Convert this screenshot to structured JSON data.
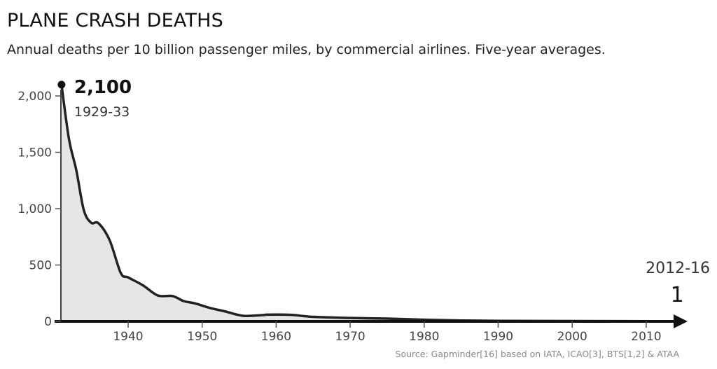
{
  "chart_data": {
    "type": "area",
    "title": "PLANE CRASH DEATHS",
    "subtitle": "Annual deaths per 10 billion passenger miles, by commercial airlines. Five-year averages.",
    "xlabel": "",
    "ylabel": "",
    "xlim": [
      1931,
      2016
    ],
    "ylim": [
      0,
      2100
    ],
    "x_ticks": [
      1940,
      1950,
      1960,
      1970,
      1980,
      1990,
      2000,
      2010
    ],
    "x_tick_labels": [
      "1940",
      "1950",
      "1960",
      "1970",
      "1980",
      "1990",
      "2000",
      "2010"
    ],
    "y_ticks": [
      0,
      500,
      1000,
      1500,
      2000
    ],
    "y_tick_labels": [
      "0",
      "500",
      "1,000",
      "1,500",
      "2,000"
    ],
    "grid": false,
    "fill_color": "#e6e6e6",
    "line_color": "#222222",
    "series": [
      {
        "x": [
          1931,
          1932,
          1933,
          1934,
          1935,
          1936,
          1937.5,
          1939,
          1940,
          1942,
          1944,
          1946,
          1947.5,
          1949,
          1951,
          1953,
          1955.5,
          1958,
          1959,
          1962,
          1965,
          1970,
          1975,
          1980,
          1985,
          1990,
          2000,
          2014
        ],
        "values": [
          2100,
          1620,
          1340,
          990,
          875,
          870,
          720,
          430,
          390,
          320,
          230,
          225,
          180,
          160,
          120,
          90,
          50,
          55,
          60,
          58,
          40,
          30,
          25,
          15,
          8,
          5,
          3,
          1
        ]
      }
    ],
    "annotations": [
      {
        "value_label": "2,100",
        "period_label": "1929-33"
      },
      {
        "value_label": "1",
        "period_label": "2012-16"
      }
    ],
    "source": "Source: Gapminder[16] based on IATA, ICAO[3], BTS[1,2] & ATAA"
  }
}
